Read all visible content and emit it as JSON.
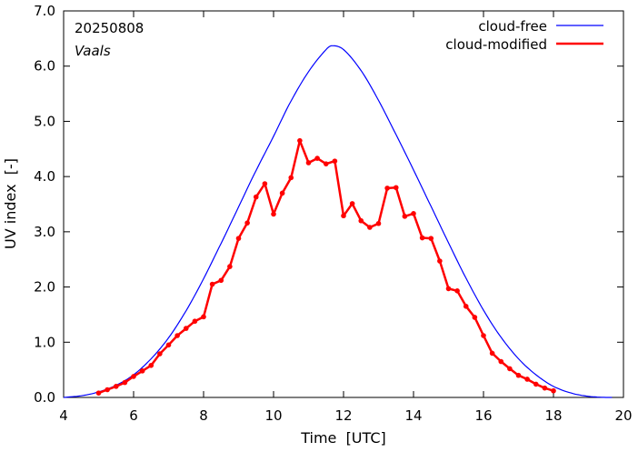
{
  "chart_data": {
    "type": "line",
    "date_label": "20250808",
    "location_label": "Vaals",
    "xlabel": "Time  [UTC]",
    "ylabel": "UV index  [-]",
    "xlim": [
      4,
      20
    ],
    "ylim": [
      0,
      7
    ],
    "x_ticks": [
      4,
      6,
      8,
      10,
      12,
      14,
      16,
      18,
      20
    ],
    "y_ticks": [
      0,
      1,
      2,
      3,
      4,
      5,
      6,
      7
    ],
    "y_tick_labels": [
      "0.0",
      "1.0",
      "2.0",
      "3.0",
      "4.0",
      "5.0",
      "6.0",
      "7.0"
    ],
    "grid": false,
    "legend_position": "top-right",
    "series": [
      {
        "name": "cloud-free",
        "color": "#0000ff",
        "marker": false,
        "x": [
          4.0,
          4.5,
          5.0,
          5.5,
          6.0,
          6.5,
          7.0,
          7.5,
          8.0,
          8.5,
          9.0,
          9.5,
          10.0,
          10.5,
          11.0,
          11.5,
          11.67,
          12.0,
          12.5,
          13.0,
          13.5,
          14.0,
          14.5,
          15.0,
          15.5,
          16.0,
          16.5,
          17.0,
          17.5,
          18.0,
          18.5,
          19.0,
          19.5,
          19.67
        ],
        "y": [
          0.0,
          0.03,
          0.1,
          0.22,
          0.41,
          0.7,
          1.08,
          1.57,
          2.15,
          2.79,
          3.45,
          4.11,
          4.73,
          5.37,
          5.9,
          6.3,
          6.37,
          6.3,
          5.92,
          5.38,
          4.76,
          4.12,
          3.46,
          2.8,
          2.16,
          1.58,
          1.09,
          0.7,
          0.41,
          0.2,
          0.08,
          0.02,
          0.0,
          0.0
        ]
      },
      {
        "name": "cloud-modified",
        "color": "#ff0000",
        "marker": true,
        "x": [
          5.0,
          5.25,
          5.5,
          5.75,
          6.0,
          6.25,
          6.5,
          6.75,
          7.0,
          7.25,
          7.5,
          7.75,
          8.0,
          8.25,
          8.5,
          8.75,
          9.0,
          9.25,
          9.5,
          9.75,
          10.0,
          10.25,
          10.5,
          10.75,
          11.0,
          11.25,
          11.5,
          11.75,
          12.0,
          12.25,
          12.5,
          12.75,
          13.0,
          13.25,
          13.5,
          13.75,
          14.0,
          14.25,
          14.5,
          14.75,
          15.0,
          15.25,
          15.5,
          15.75,
          16.0,
          16.25,
          16.5,
          16.75,
          17.0,
          17.25,
          17.5,
          17.75,
          18.0
        ],
        "y": [
          0.08,
          0.14,
          0.2,
          0.27,
          0.38,
          0.48,
          0.58,
          0.79,
          0.95,
          1.12,
          1.25,
          1.38,
          1.46,
          2.05,
          2.12,
          2.37,
          2.88,
          3.16,
          3.63,
          3.87,
          3.32,
          3.7,
          3.98,
          4.65,
          4.25,
          4.33,
          4.23,
          4.28,
          3.29,
          3.51,
          3.2,
          3.08,
          3.15,
          3.79,
          3.8,
          3.28,
          3.33,
          2.89,
          2.88,
          2.47,
          1.97,
          1.93,
          1.65,
          1.45,
          1.12,
          0.8,
          0.65,
          0.52,
          0.4,
          0.33,
          0.24,
          0.17,
          0.12
        ]
      }
    ]
  }
}
